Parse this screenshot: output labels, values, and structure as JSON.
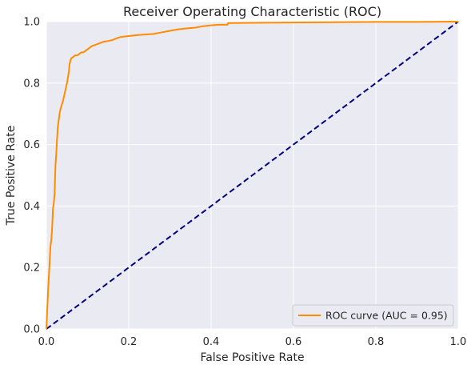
{
  "chart_data": {
    "type": "line",
    "title": "Receiver Operating Characteristic (ROC)",
    "xlabel": "False Positive Rate",
    "ylabel": "True Positive Rate",
    "xlim": [
      0.0,
      1.0
    ],
    "ylim": [
      0.0,
      1.0
    ],
    "grid": true,
    "legend_position": "lower-right",
    "xticks": [
      "0.0",
      "0.2",
      "0.4",
      "0.6",
      "0.8",
      "1.0"
    ],
    "yticks": [
      "0.0",
      "0.2",
      "0.4",
      "0.6",
      "0.8",
      "1.0"
    ],
    "colors": {
      "background": "#eaeaf2",
      "grid": "#ffffff",
      "roc": "#ff8c00",
      "diagonal": "#000080"
    },
    "series": [
      {
        "name": "ROC curve (AUC = 0.95)",
        "style": "solid",
        "x": [
          0.0,
          0.002,
          0.004,
          0.006,
          0.008,
          0.01,
          0.012,
          0.014,
          0.016,
          0.018,
          0.02,
          0.022,
          0.024,
          0.026,
          0.028,
          0.03,
          0.032,
          0.035,
          0.04,
          0.045,
          0.05,
          0.055,
          0.056,
          0.058,
          0.06,
          0.065,
          0.07,
          0.075,
          0.08,
          0.085,
          0.09,
          0.095,
          0.1,
          0.105,
          0.11,
          0.12,
          0.13,
          0.14,
          0.15,
          0.16,
          0.17,
          0.18,
          0.2,
          0.22,
          0.24,
          0.26,
          0.28,
          0.3,
          0.32,
          0.34,
          0.36,
          0.38,
          0.4,
          0.42,
          0.44,
          0.441,
          0.5,
          0.6,
          0.7,
          0.8,
          0.9,
          1.0
        ],
        "y": [
          0.0,
          0.06,
          0.12,
          0.17,
          0.22,
          0.27,
          0.29,
          0.33,
          0.39,
          0.41,
          0.44,
          0.53,
          0.57,
          0.62,
          0.66,
          0.68,
          0.7,
          0.72,
          0.74,
          0.77,
          0.8,
          0.84,
          0.86,
          0.87,
          0.88,
          0.885,
          0.89,
          0.89,
          0.895,
          0.9,
          0.9,
          0.905,
          0.91,
          0.915,
          0.92,
          0.925,
          0.93,
          0.935,
          0.937,
          0.94,
          0.945,
          0.95,
          0.953,
          0.956,
          0.958,
          0.96,
          0.965,
          0.97,
          0.975,
          0.978,
          0.98,
          0.985,
          0.988,
          0.99,
          0.99,
          0.995,
          0.996,
          0.997,
          0.998,
          0.999,
          0.999,
          1.0
        ]
      },
      {
        "name": "",
        "style": "dashed",
        "x": [
          0.0,
          1.0
        ],
        "y": [
          0.0,
          1.0
        ]
      }
    ]
  }
}
